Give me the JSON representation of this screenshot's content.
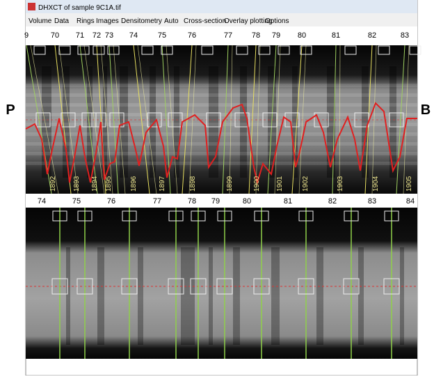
{
  "window": {
    "title": "DHXCT of sample 9C1A.tif"
  },
  "menu": [
    "Volume",
    "Data",
    "Rings",
    "Images",
    "Densitometry",
    "Auto",
    "Cross-section",
    "Overlay plotting",
    "Options"
  ],
  "side_labels": {
    "left": "P",
    "right": "B"
  },
  "top_scale": [
    "9",
    "70",
    "71",
    "72",
    "73",
    "74",
    "75",
    "76",
    "77",
    "78",
    "79",
    "80",
    "81",
    "82",
    "83"
  ],
  "year_labels": [
    "1892",
    "1893",
    "1894",
    "1895",
    "1896",
    "1897",
    "1898",
    "1899",
    "1900",
    "1901",
    "1902",
    "1903",
    "1904",
    "1905"
  ],
  "bottom_scale": [
    "74",
    "75",
    "76",
    "77",
    "78",
    "79",
    "80",
    "81",
    "82",
    "83",
    "84"
  ]
}
